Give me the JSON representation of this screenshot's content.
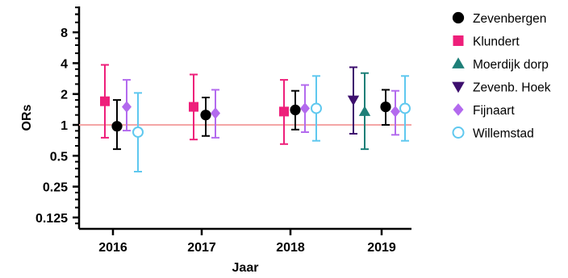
{
  "chart_data": {
    "type": "scatter",
    "xlabel": "Jaar",
    "ylabel": "ORs",
    "y_scale": "log2",
    "ylim": [
      0.1,
      12
    ],
    "y_ticks": [
      {
        "value": 8,
        "label": "8"
      },
      {
        "value": 4,
        "label": "4"
      },
      {
        "value": 2,
        "label": "2"
      },
      {
        "value": 1,
        "label": "1"
      },
      {
        "value": 0.5,
        "label": "0.5"
      },
      {
        "value": 0.25,
        "label": "0.25"
      },
      {
        "value": 0.125,
        "label": "0.125"
      }
    ],
    "categories": [
      "2016",
      "2017",
      "2018",
      "2019"
    ],
    "reference_line": {
      "value": 1,
      "color": "#f4a6a6"
    },
    "legend_position": "right",
    "series": [
      {
        "name": "Zevenbergen",
        "color": "#000000",
        "marker": "circle-filled",
        "points": [
          {
            "year": "2016",
            "or": 0.97,
            "low": 0.58,
            "high": 1.75
          },
          {
            "year": "2017",
            "or": 1.25,
            "low": 0.78,
            "high": 1.85
          },
          {
            "year": "2018",
            "or": 1.4,
            "low": 0.9,
            "high": 2.15
          },
          {
            "year": "2019",
            "or": 1.5,
            "low": 1.0,
            "high": 2.2
          }
        ]
      },
      {
        "name": "Klundert",
        "color": "#ee1f7a",
        "marker": "square",
        "points": [
          {
            "year": "2016",
            "or": 1.7,
            "low": 0.75,
            "high": 3.85
          },
          {
            "year": "2017",
            "or": 1.5,
            "low": 0.72,
            "high": 3.1
          },
          {
            "year": "2018",
            "or": 1.35,
            "low": 0.65,
            "high": 2.75
          }
        ]
      },
      {
        "name": "Moerdijk dorp",
        "color": "#1e7f78",
        "marker": "triangle-up",
        "points": [
          {
            "year": "2019",
            "or": 1.35,
            "low": 0.58,
            "high": 3.2
          }
        ]
      },
      {
        "name": "Zevenb. Hoek",
        "color": "#3d0f6e",
        "marker": "triangle-down",
        "points": [
          {
            "year": "2019",
            "or": 1.75,
            "low": 0.82,
            "high": 3.65
          }
        ]
      },
      {
        "name": "Fijnaart",
        "color": "#b36aee",
        "marker": "diamond",
        "points": [
          {
            "year": "2016",
            "or": 1.5,
            "low": 0.88,
            "high": 2.75
          },
          {
            "year": "2017",
            "or": 1.3,
            "low": 0.75,
            "high": 2.2
          },
          {
            "year": "2018",
            "or": 1.45,
            "low": 0.85,
            "high": 2.45
          },
          {
            "year": "2019",
            "or": 1.35,
            "low": 0.8,
            "high": 2.15
          }
        ]
      },
      {
        "name": "Willemstad",
        "color": "#5fc8ef",
        "marker": "circle-open",
        "points": [
          {
            "year": "2016",
            "or": 0.85,
            "low": 0.35,
            "high": 2.05
          },
          {
            "year": "2018",
            "or": 1.45,
            "low": 0.7,
            "high": 3.0
          },
          {
            "year": "2019",
            "or": 1.45,
            "low": 0.7,
            "high": 3.0
          }
        ]
      }
    ]
  }
}
